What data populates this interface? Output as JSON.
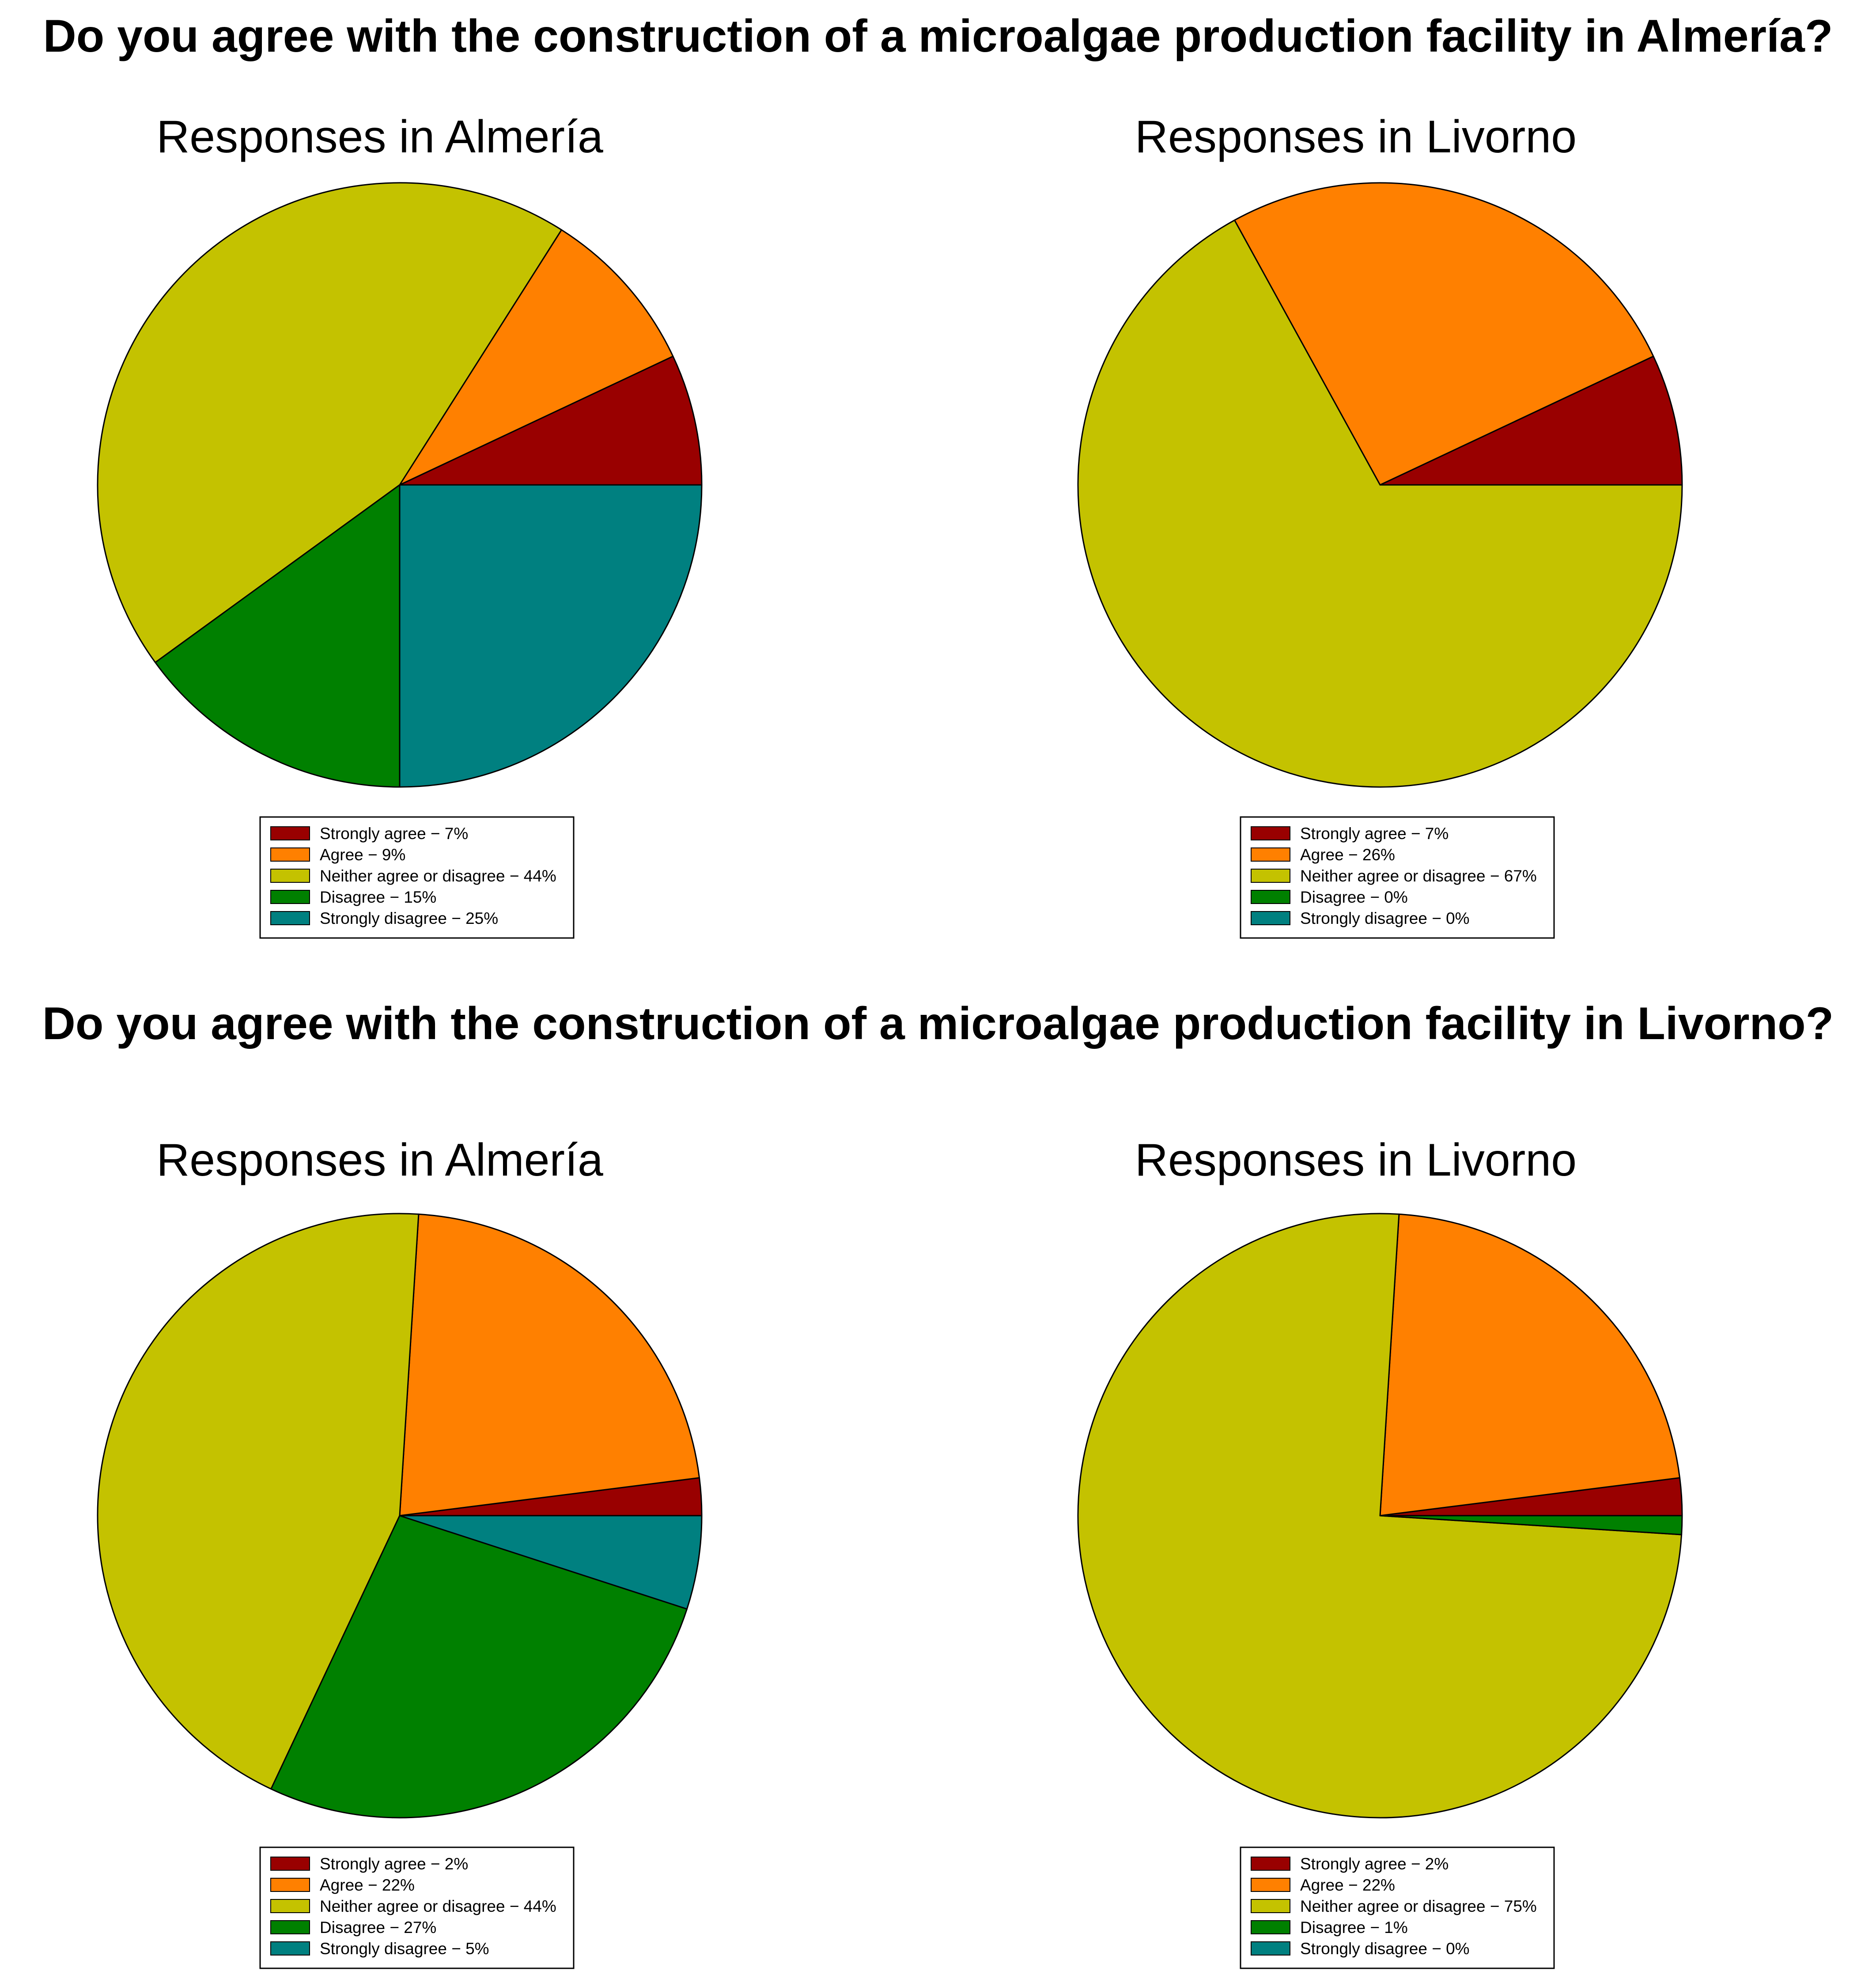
{
  "questions": [
    "Do you agree with the construction of a microalgae production facility in Almería?",
    "Do you agree with the construction of a microalgae production facility in Livorno?"
  ],
  "colors": {
    "Strongly agree": "#990000",
    "Agree": "#ff8000",
    "Neither agree or disagree": "#c4c200",
    "Disagree": "#008000",
    "Strongly disagree": "#008080"
  },
  "chart_data": [
    {
      "type": "pie",
      "question": "Do you agree with the construction of a microalgae production facility in Almería?",
      "title": "Responses in Almería",
      "categories": [
        "Strongly agree",
        "Agree",
        "Neither agree or disagree",
        "Disagree",
        "Strongly disagree"
      ],
      "values": [
        7,
        9,
        44,
        15,
        25
      ],
      "legend_labels": [
        "Strongly agree − 7%",
        "Agree − 9%",
        "Neither agree or disagree − 44%",
        "Disagree − 15%",
        "Strongly disagree − 25%"
      ],
      "legend": "bottom"
    },
    {
      "type": "pie",
      "question": "Do you agree with the construction of a microalgae production facility in Almería?",
      "title": "Responses in Livorno",
      "categories": [
        "Strongly agree",
        "Agree",
        "Neither agree or disagree",
        "Disagree",
        "Strongly disagree"
      ],
      "values": [
        7,
        26,
        67,
        0,
        0
      ],
      "legend_labels": [
        "Strongly agree − 7%",
        "Agree − 26%",
        "Neither agree or disagree − 67%",
        "Disagree − 0%",
        "Strongly disagree − 0%"
      ],
      "legend": "bottom"
    },
    {
      "type": "pie",
      "question": "Do you agree with the construction of a microalgae production facility in Livorno?",
      "title": "Responses in Almería",
      "categories": [
        "Strongly agree",
        "Agree",
        "Neither agree or disagree",
        "Disagree",
        "Strongly disagree"
      ],
      "values": [
        2,
        22,
        44,
        27,
        5
      ],
      "legend_labels": [
        "Strongly agree − 2%",
        "Agree − 22%",
        "Neither agree or disagree − 44%",
        "Disagree − 27%",
        "Strongly disagree − 5%"
      ],
      "legend": "bottom"
    },
    {
      "type": "pie",
      "question": "Do you agree with the construction of a microalgae production facility in Livorno?",
      "title": "Responses in Livorno",
      "categories": [
        "Strongly agree",
        "Agree",
        "Neither agree or disagree",
        "Disagree",
        "Strongly disagree"
      ],
      "values": [
        2,
        22,
        75,
        1,
        0
      ],
      "legend_labels": [
        "Strongly agree − 2%",
        "Agree − 22%",
        "Neither agree or disagree − 75%",
        "Disagree − 1%",
        "Strongly disagree − 0%"
      ],
      "legend": "bottom"
    }
  ]
}
